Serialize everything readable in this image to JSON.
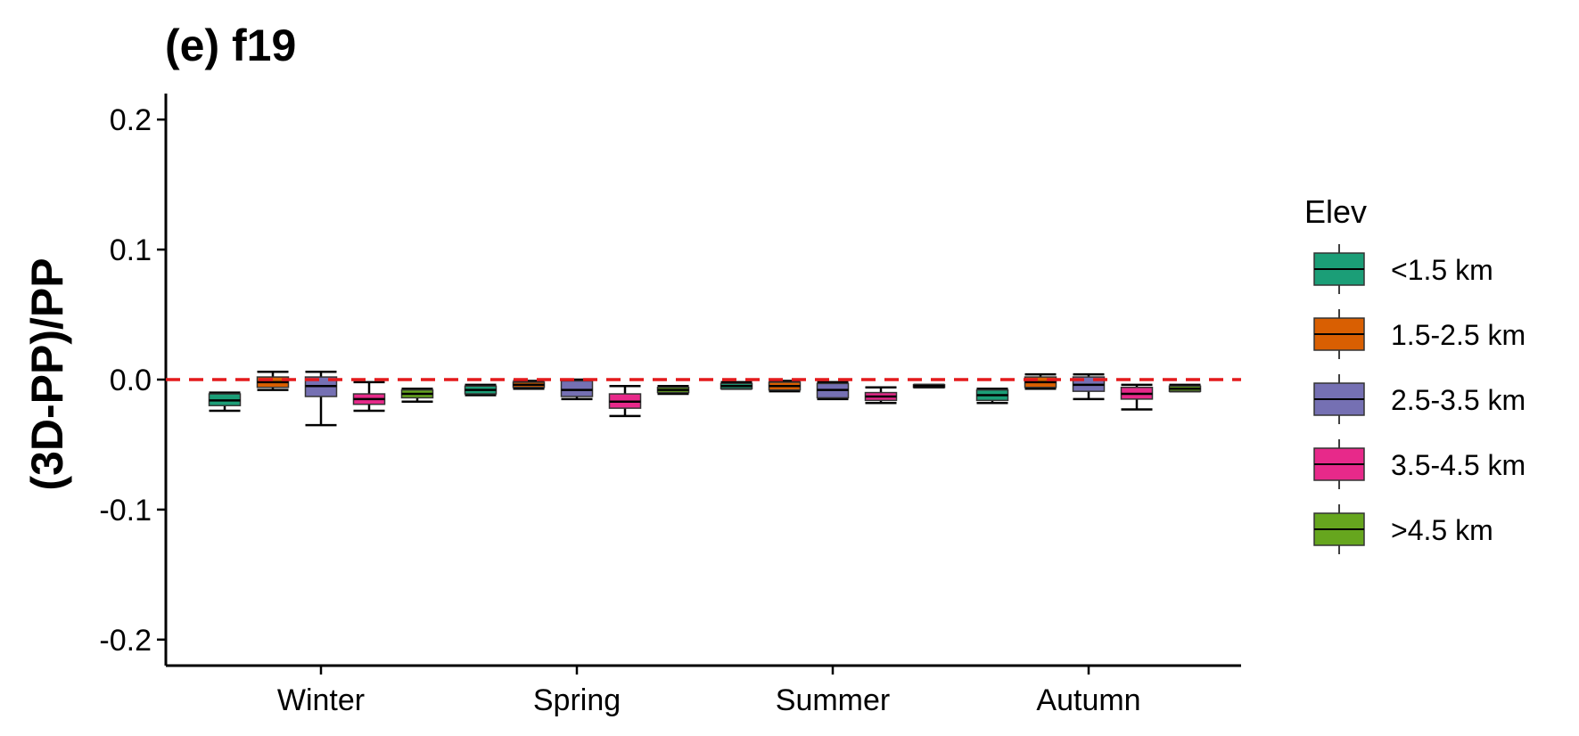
{
  "chart_data": {
    "type": "boxplot",
    "title": "(e) f19",
    "ylabel": "(3D-PP)/PP",
    "xlabel": "",
    "ylim": [
      -0.22,
      0.22
    ],
    "yticks": [
      0.2,
      0.1,
      0.0,
      -0.1,
      -0.2
    ],
    "ytick_labels": [
      "0.2",
      "0.1",
      "0.0",
      "-0.1",
      "-0.2"
    ],
    "reference_line": {
      "y": 0.0,
      "color": "#E41A1C",
      "style": "dashed"
    },
    "categories": [
      "Winter",
      "Spring",
      "Summer",
      "Autumn"
    ],
    "legend": {
      "title": "Elev",
      "position": "right"
    },
    "series": [
      {
        "name": "<1.5 km",
        "color": "#1B9E77",
        "boxes": [
          {
            "min": -0.024,
            "q1": -0.02,
            "median": -0.016,
            "q3": -0.011,
            "max": -0.01
          },
          {
            "min": -0.012,
            "q1": -0.011,
            "median": -0.008,
            "q3": -0.005,
            "max": -0.004
          },
          {
            "min": -0.007,
            "q1": -0.007,
            "median": -0.005,
            "q3": -0.003,
            "max": -0.002
          },
          {
            "min": -0.018,
            "q1": -0.016,
            "median": -0.012,
            "q3": -0.008,
            "max": -0.007
          }
        ]
      },
      {
        "name": "1.5-2.5 km",
        "color": "#D95F02",
        "boxes": [
          {
            "min": -0.008,
            "q1": -0.006,
            "median": -0.002,
            "q3": 0.002,
            "max": 0.006
          },
          {
            "min": -0.007,
            "q1": -0.006,
            "median": -0.004,
            "q3": -0.002,
            "max": -0.001
          },
          {
            "min": -0.009,
            "q1": -0.008,
            "median": -0.005,
            "q3": -0.002,
            "max": -0.001
          },
          {
            "min": -0.007,
            "q1": -0.006,
            "median": -0.002,
            "q3": 0.002,
            "max": 0.004
          }
        ]
      },
      {
        "name": "2.5-3.5 km",
        "color": "#7570B3",
        "boxes": [
          {
            "min": -0.035,
            "q1": -0.013,
            "median": -0.005,
            "q3": 0.002,
            "max": 0.006
          },
          {
            "min": -0.015,
            "q1": -0.013,
            "median": -0.008,
            "q3": -0.001,
            "max": 0.0
          },
          {
            "min": -0.015,
            "q1": -0.014,
            "median": -0.008,
            "q3": -0.003,
            "max": -0.002
          },
          {
            "min": -0.015,
            "q1": -0.009,
            "median": -0.004,
            "q3": 0.002,
            "max": 0.004
          }
        ]
      },
      {
        "name": "3.5-4.5 km",
        "color": "#E7298A",
        "boxes": [
          {
            "min": -0.024,
            "q1": -0.019,
            "median": -0.015,
            "q3": -0.011,
            "max": -0.002
          },
          {
            "min": -0.028,
            "q1": -0.022,
            "median": -0.017,
            "q3": -0.011,
            "max": -0.005
          },
          {
            "min": -0.018,
            "q1": -0.016,
            "median": -0.013,
            "q3": -0.01,
            "max": -0.006
          },
          {
            "min": -0.023,
            "q1": -0.015,
            "median": -0.011,
            "q3": -0.006,
            "max": -0.004
          }
        ]
      },
      {
        "name": ">4.5 km",
        "color": "#66A61E",
        "boxes": [
          {
            "min": -0.017,
            "q1": -0.014,
            "median": -0.011,
            "q3": -0.008,
            "max": -0.007
          },
          {
            "min": -0.011,
            "q1": -0.01,
            "median": -0.008,
            "q3": -0.006,
            "max": -0.005
          },
          {
            "min": -0.006,
            "q1": -0.006,
            "median": -0.005,
            "q3": -0.004,
            "max": -0.004
          },
          {
            "min": -0.009,
            "q1": -0.009,
            "median": -0.007,
            "q3": -0.005,
            "max": -0.004
          }
        ]
      }
    ]
  }
}
